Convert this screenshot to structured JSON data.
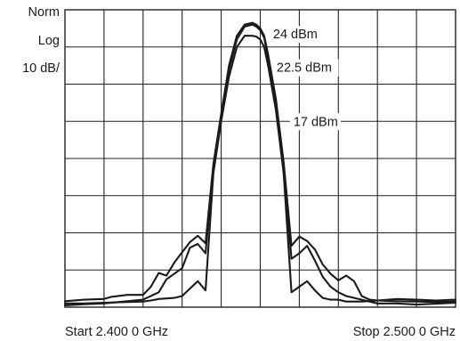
{
  "chart_data": {
    "type": "line",
    "scale_labels": [
      "Norm",
      "Log",
      "10 dB/"
    ],
    "start_label": "Start 2.400 0 GHz",
    "stop_label": "Stop 2.500 0 GHz",
    "x_range_ghz": [
      2.4,
      2.5
    ],
    "y_scale": "log, 10 dB per division",
    "grid": {
      "x_divisions": 10,
      "y_divisions": 8
    },
    "series": [
      {
        "name": "24 dBm",
        "x": [
          2.4,
          2.405,
          2.41,
          2.412,
          2.416,
          2.42,
          2.422,
          2.424,
          2.426,
          2.428,
          2.432,
          2.434,
          2.436,
          2.438,
          2.44,
          2.442,
          2.444,
          2.446,
          2.448,
          2.449,
          2.45,
          2.451,
          2.452,
          2.454,
          2.456,
          2.458,
          2.46,
          2.462,
          2.464,
          2.466,
          2.468,
          2.47,
          2.472,
          2.474,
          2.476,
          2.478,
          2.48,
          2.485,
          2.49,
          2.495,
          2.5
        ],
        "y": [
          0.16,
          0.2,
          0.22,
          0.28,
          0.33,
          0.33,
          0.55,
          0.92,
          0.85,
          1.2,
          1.75,
          1.92,
          1.72,
          3.85,
          5.2,
          6.5,
          7.3,
          7.6,
          7.65,
          7.6,
          7.5,
          7.3,
          6.8,
          5.6,
          3.9,
          1.65,
          1.9,
          1.78,
          1.55,
          1.15,
          0.9,
          0.72,
          0.85,
          0.7,
          0.3,
          0.2,
          0.18,
          0.16,
          0.15,
          0.14,
          0.15
        ]
      },
      {
        "name": "22.5 dBm",
        "x": [
          2.4,
          2.405,
          2.41,
          2.416,
          2.42,
          2.424,
          2.426,
          2.43,
          2.432,
          2.434,
          2.436,
          2.438,
          2.44,
          2.442,
          2.444,
          2.446,
          2.448,
          2.449,
          2.45,
          2.451,
          2.452,
          2.454,
          2.456,
          2.458,
          2.46,
          2.462,
          2.464,
          2.466,
          2.468,
          2.47,
          2.472,
          2.476,
          2.48,
          2.485,
          2.49,
          2.5
        ],
        "y": [
          0.05,
          0.08,
          0.1,
          0.16,
          0.2,
          0.4,
          0.75,
          1.05,
          1.6,
          1.7,
          1.45,
          3.75,
          5.1,
          6.4,
          7.2,
          7.55,
          7.6,
          7.55,
          7.45,
          7.25,
          6.7,
          5.5,
          3.8,
          1.3,
          1.45,
          1.65,
          1.25,
          0.82,
          0.55,
          0.4,
          0.3,
          0.2,
          0.1,
          0.1,
          0.07,
          0.12
        ]
      },
      {
        "name": "17 dBm",
        "x": [
          2.4,
          2.405,
          2.41,
          2.416,
          2.42,
          2.422,
          2.424,
          2.428,
          2.43,
          2.432,
          2.434,
          2.436,
          2.438,
          2.44,
          2.442,
          2.444,
          2.446,
          2.448,
          2.449,
          2.45,
          2.451,
          2.452,
          2.454,
          2.456,
          2.458,
          2.46,
          2.462,
          2.464,
          2.466,
          2.468,
          2.47,
          2.472,
          2.476,
          2.48,
          2.485,
          2.49,
          2.495,
          2.5
        ],
        "y": [
          0.1,
          0.1,
          0.12,
          0.14,
          0.15,
          0.18,
          0.22,
          0.25,
          0.3,
          0.5,
          0.7,
          0.45,
          3.6,
          5.0,
          6.2,
          7.0,
          7.3,
          7.3,
          7.28,
          7.2,
          7.0,
          6.5,
          5.3,
          3.6,
          0.4,
          0.55,
          0.7,
          0.45,
          0.25,
          0.2,
          0.2,
          0.15,
          0.15,
          0.18,
          0.22,
          0.2,
          0.18,
          0.2
        ]
      }
    ]
  }
}
